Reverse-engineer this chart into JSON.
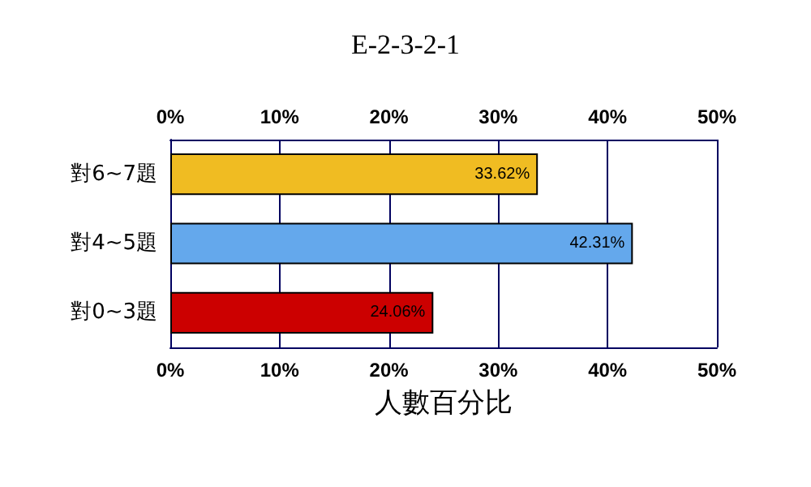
{
  "chart_data": {
    "type": "bar",
    "orientation": "horizontal",
    "title": "E-2-3-2-1",
    "xlabel": "人數百分比",
    "categories": [
      "對6~7題",
      "對4~5題",
      "對0~3題"
    ],
    "values": [
      33.62,
      42.31,
      24.06
    ],
    "colors": [
      "#f0bc22",
      "#64a8ec",
      "#cc0000"
    ],
    "value_labels": [
      "33.62%",
      "42.31%",
      "24.06%"
    ],
    "xlim": [
      0,
      50
    ],
    "xticks": [
      {
        "value": 0,
        "label": "0%"
      },
      {
        "value": 10,
        "label": "10%"
      },
      {
        "value": 20,
        "label": "20%"
      },
      {
        "value": 30,
        "label": "30%"
      },
      {
        "value": 40,
        "label": "40%"
      },
      {
        "value": 50,
        "label": "50%"
      }
    ],
    "x2lim": [
      0,
      50
    ],
    "x2ticks": [
      {
        "value": 0,
        "label": "0%"
      },
      {
        "value": 10,
        "label": "10%"
      },
      {
        "value": 20,
        "label": "20%"
      },
      {
        "value": 30,
        "label": "30%"
      },
      {
        "value": 40,
        "label": "40%"
      },
      {
        "value": 50,
        "label": "50%"
      }
    ],
    "grid": "x"
  }
}
